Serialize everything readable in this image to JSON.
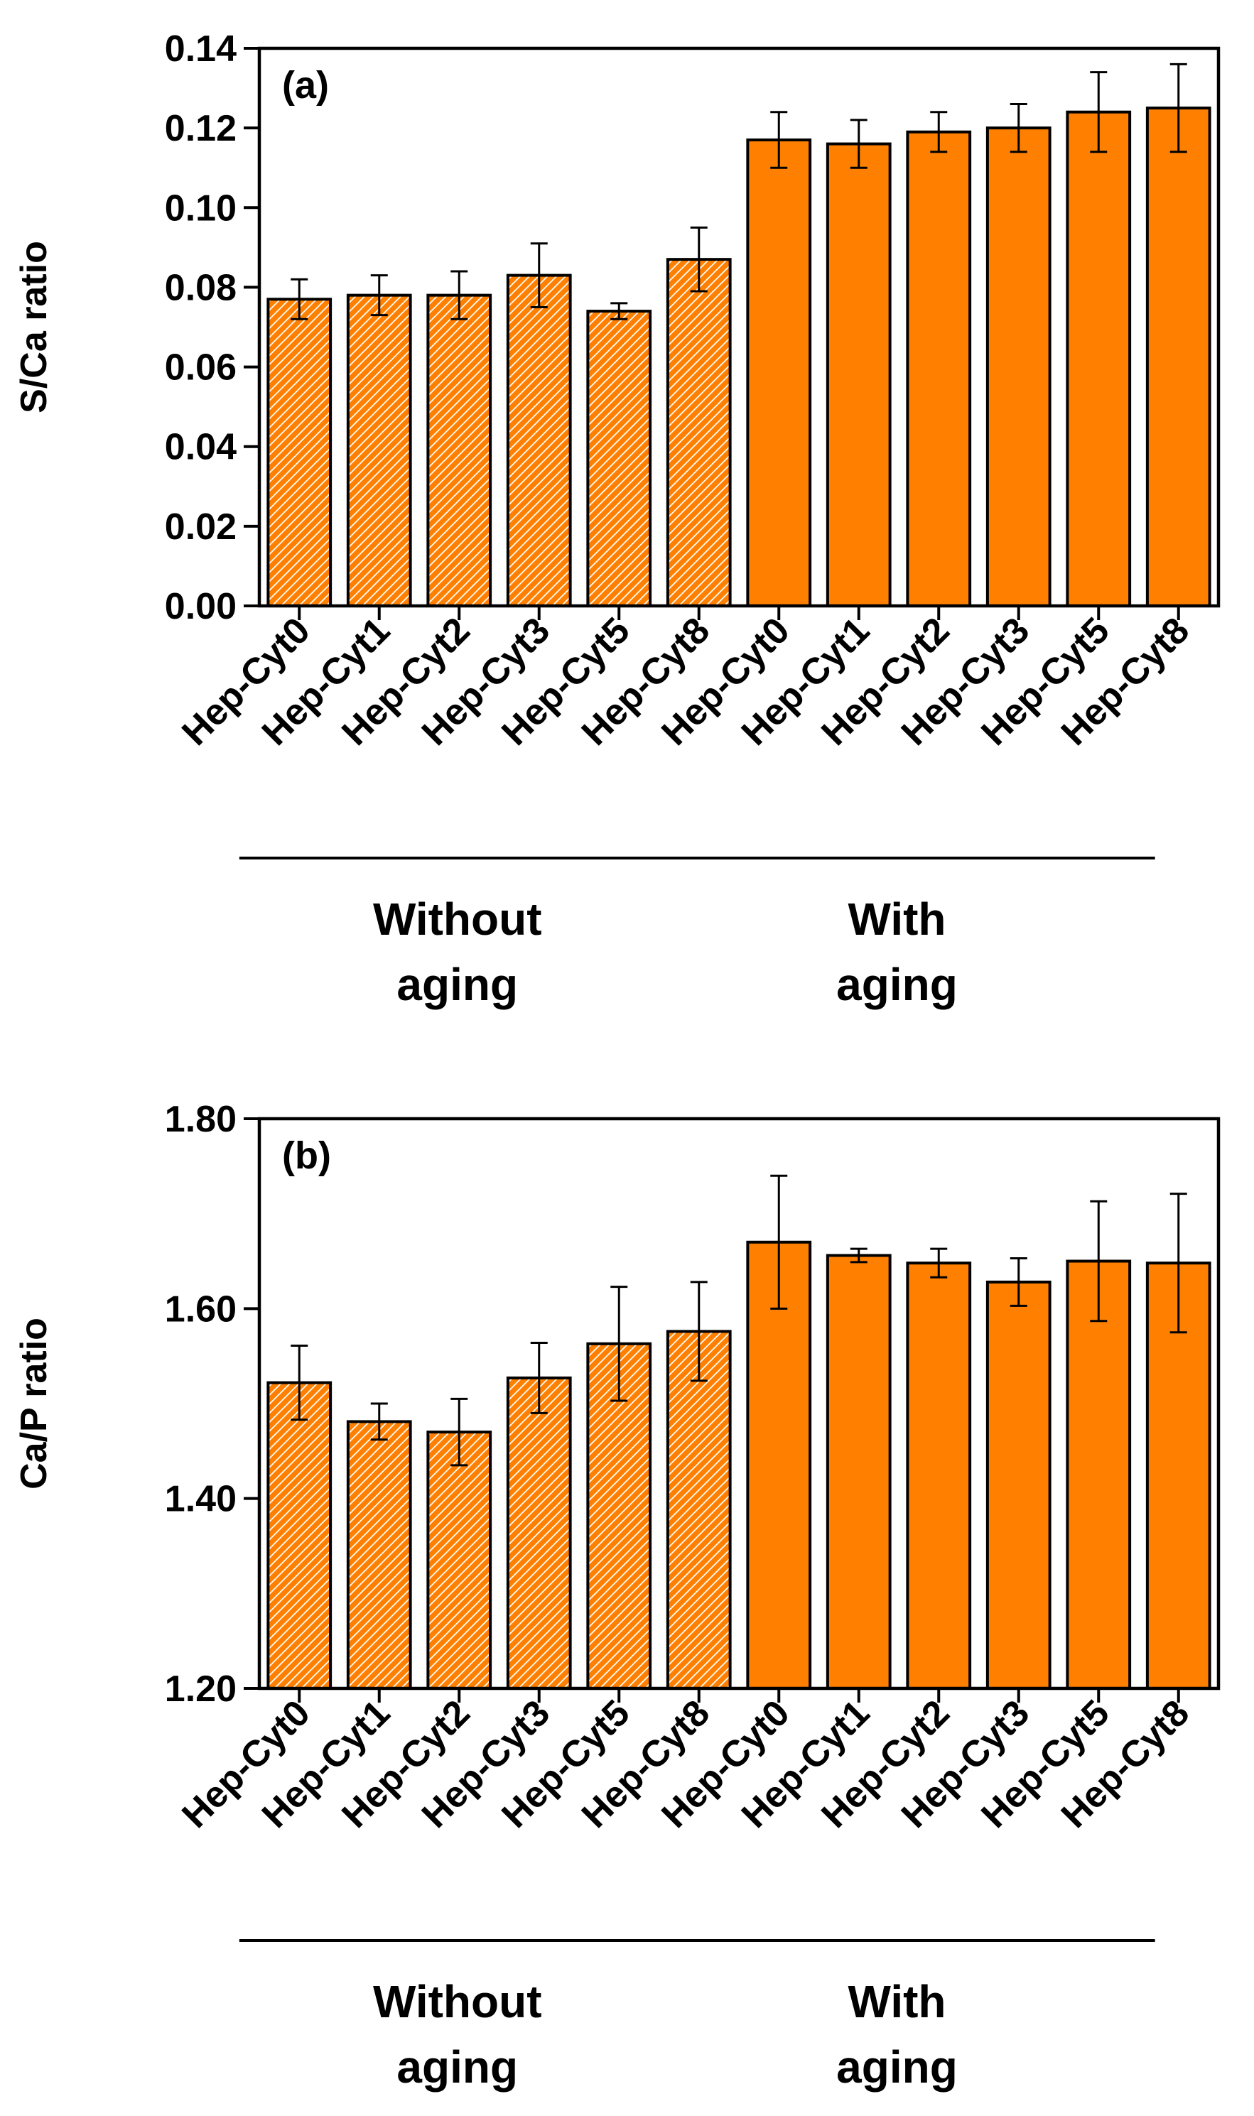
{
  "colors": {
    "bar": "#ff8000",
    "hatch": "#ffffff",
    "stroke": "#000000"
  },
  "chart_data": [
    {
      "type": "bar",
      "panel_label": "(a)",
      "ylabel": "S/Ca ratio",
      "xlabel": "",
      "ylim": [
        0.0,
        0.14
      ],
      "yticks": [
        "0.00",
        "0.02",
        "0.04",
        "0.06",
        "0.08",
        "0.10",
        "0.12",
        "0.14"
      ],
      "categories": [
        "Hep-Cyt0",
        "Hep-Cyt1",
        "Hep-Cyt2",
        "Hep-Cyt3",
        "Hep-Cyt5",
        "Hep-Cyt8",
        "Hep-Cyt0",
        "Hep-Cyt1",
        "Hep-Cyt2",
        "Hep-Cyt3",
        "Hep-Cyt5",
        "Hep-Cyt8"
      ],
      "values": [
        0.077,
        0.078,
        0.078,
        0.083,
        0.074,
        0.087,
        0.117,
        0.116,
        0.119,
        0.12,
        0.124,
        0.125
      ],
      "errors": [
        0.005,
        0.005,
        0.006,
        0.008,
        0.002,
        0.008,
        0.007,
        0.006,
        0.005,
        0.006,
        0.01,
        0.011
      ],
      "hatched": [
        true,
        true,
        true,
        true,
        true,
        true,
        false,
        false,
        false,
        false,
        false,
        false
      ],
      "groups": [
        {
          "label_line1": "Without",
          "label_line2": "aging",
          "start": 0,
          "end": 4
        },
        {
          "label_line1": "With",
          "label_line2": "aging",
          "start": 5,
          "end": 10
        }
      ]
    },
    {
      "type": "bar",
      "panel_label": "(b)",
      "ylabel": "Ca/P ratio",
      "xlabel": "",
      "ylim": [
        1.2,
        1.8
      ],
      "yticks": [
        "1.20",
        "1.40",
        "1.60",
        "1.80"
      ],
      "categories": [
        "Hep-Cyt0",
        "Hep-Cyt1",
        "Hep-Cyt2",
        "Hep-Cyt3",
        "Hep-Cyt5",
        "Hep-Cyt8",
        "Hep-Cyt0",
        "Hep-Cyt1",
        "Hep-Cyt2",
        "Hep-Cyt3",
        "Hep-Cyt5",
        "Hep-Cyt8"
      ],
      "values": [
        1.522,
        1.481,
        1.47,
        1.527,
        1.563,
        1.576,
        1.67,
        1.656,
        1.648,
        1.628,
        1.65,
        1.648
      ],
      "errors": [
        0.039,
        0.019,
        0.035,
        0.037,
        0.06,
        0.052,
        0.07,
        0.007,
        0.015,
        0.025,
        0.063,
        0.073
      ],
      "hatched": [
        true,
        true,
        true,
        true,
        true,
        true,
        false,
        false,
        false,
        false,
        false,
        false
      ],
      "groups": [
        {
          "label_line1": "Without",
          "label_line2": "aging",
          "start": 0,
          "end": 4
        },
        {
          "label_line1": "With",
          "label_line2": "aging",
          "start": 5,
          "end": 10
        }
      ]
    }
  ]
}
